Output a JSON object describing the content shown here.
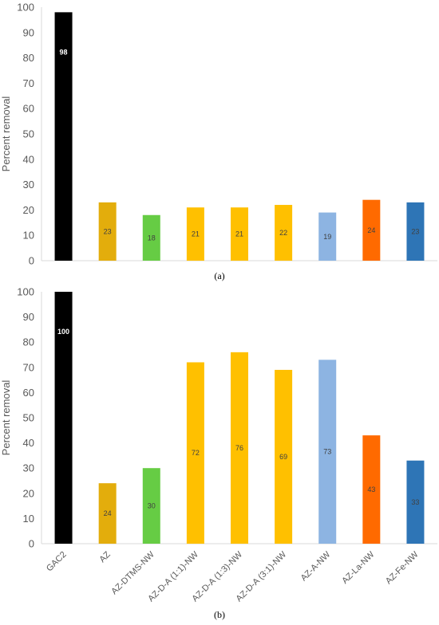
{
  "chart_data": [
    {
      "type": "bar",
      "panel_label": "(a)",
      "title": "",
      "ylabel": "Percent removal",
      "xlabel": "",
      "ylim": [
        0,
        100
      ],
      "yticks": [
        0,
        10,
        20,
        30,
        40,
        50,
        60,
        70,
        80,
        90,
        100
      ],
      "categories": [
        "GAC2",
        "AZ",
        "AZ-DTMS-NW",
        "AZ-D-A (1:1)-NW",
        "AZ-D-A (1:3)-NW",
        "AZ-D-A (3:1)-NW",
        "AZ-A-NW",
        "AZ-La-NW",
        "AZ-Fe-NW"
      ],
      "values": [
        98,
        23,
        18,
        21,
        21,
        22,
        19,
        24,
        23
      ],
      "colors": [
        "#000000",
        "#e3ad0c",
        "#66cc44",
        "#ffc000",
        "#ffc000",
        "#ffc000",
        "#8db4e2",
        "#ff6a00",
        "#2e75b6"
      ],
      "show_category_labels": false,
      "grid": false
    },
    {
      "type": "bar",
      "panel_label": "(b)",
      "title": "",
      "ylabel": "Percent removal",
      "xlabel": "",
      "ylim": [
        0,
        100
      ],
      "yticks": [
        0,
        10,
        20,
        30,
        40,
        50,
        60,
        70,
        80,
        90,
        100
      ],
      "categories": [
        "GAC2",
        "AZ",
        "AZ-DTMS-NW",
        "AZ-D-A (1:1)-NW",
        "AZ-D-A (1:3)-NW",
        "AZ-D-A (3:1)-NW",
        "AZ-A-NW",
        "AZ-La-NW",
        "AZ-Fe-NW"
      ],
      "values": [
        100,
        24,
        30,
        72,
        76,
        69,
        73,
        43,
        33
      ],
      "colors": [
        "#000000",
        "#e3ad0c",
        "#66cc44",
        "#ffc000",
        "#ffc000",
        "#ffc000",
        "#8db4e2",
        "#ff6a00",
        "#2e75b6"
      ],
      "show_category_labels": true,
      "grid": false
    }
  ]
}
